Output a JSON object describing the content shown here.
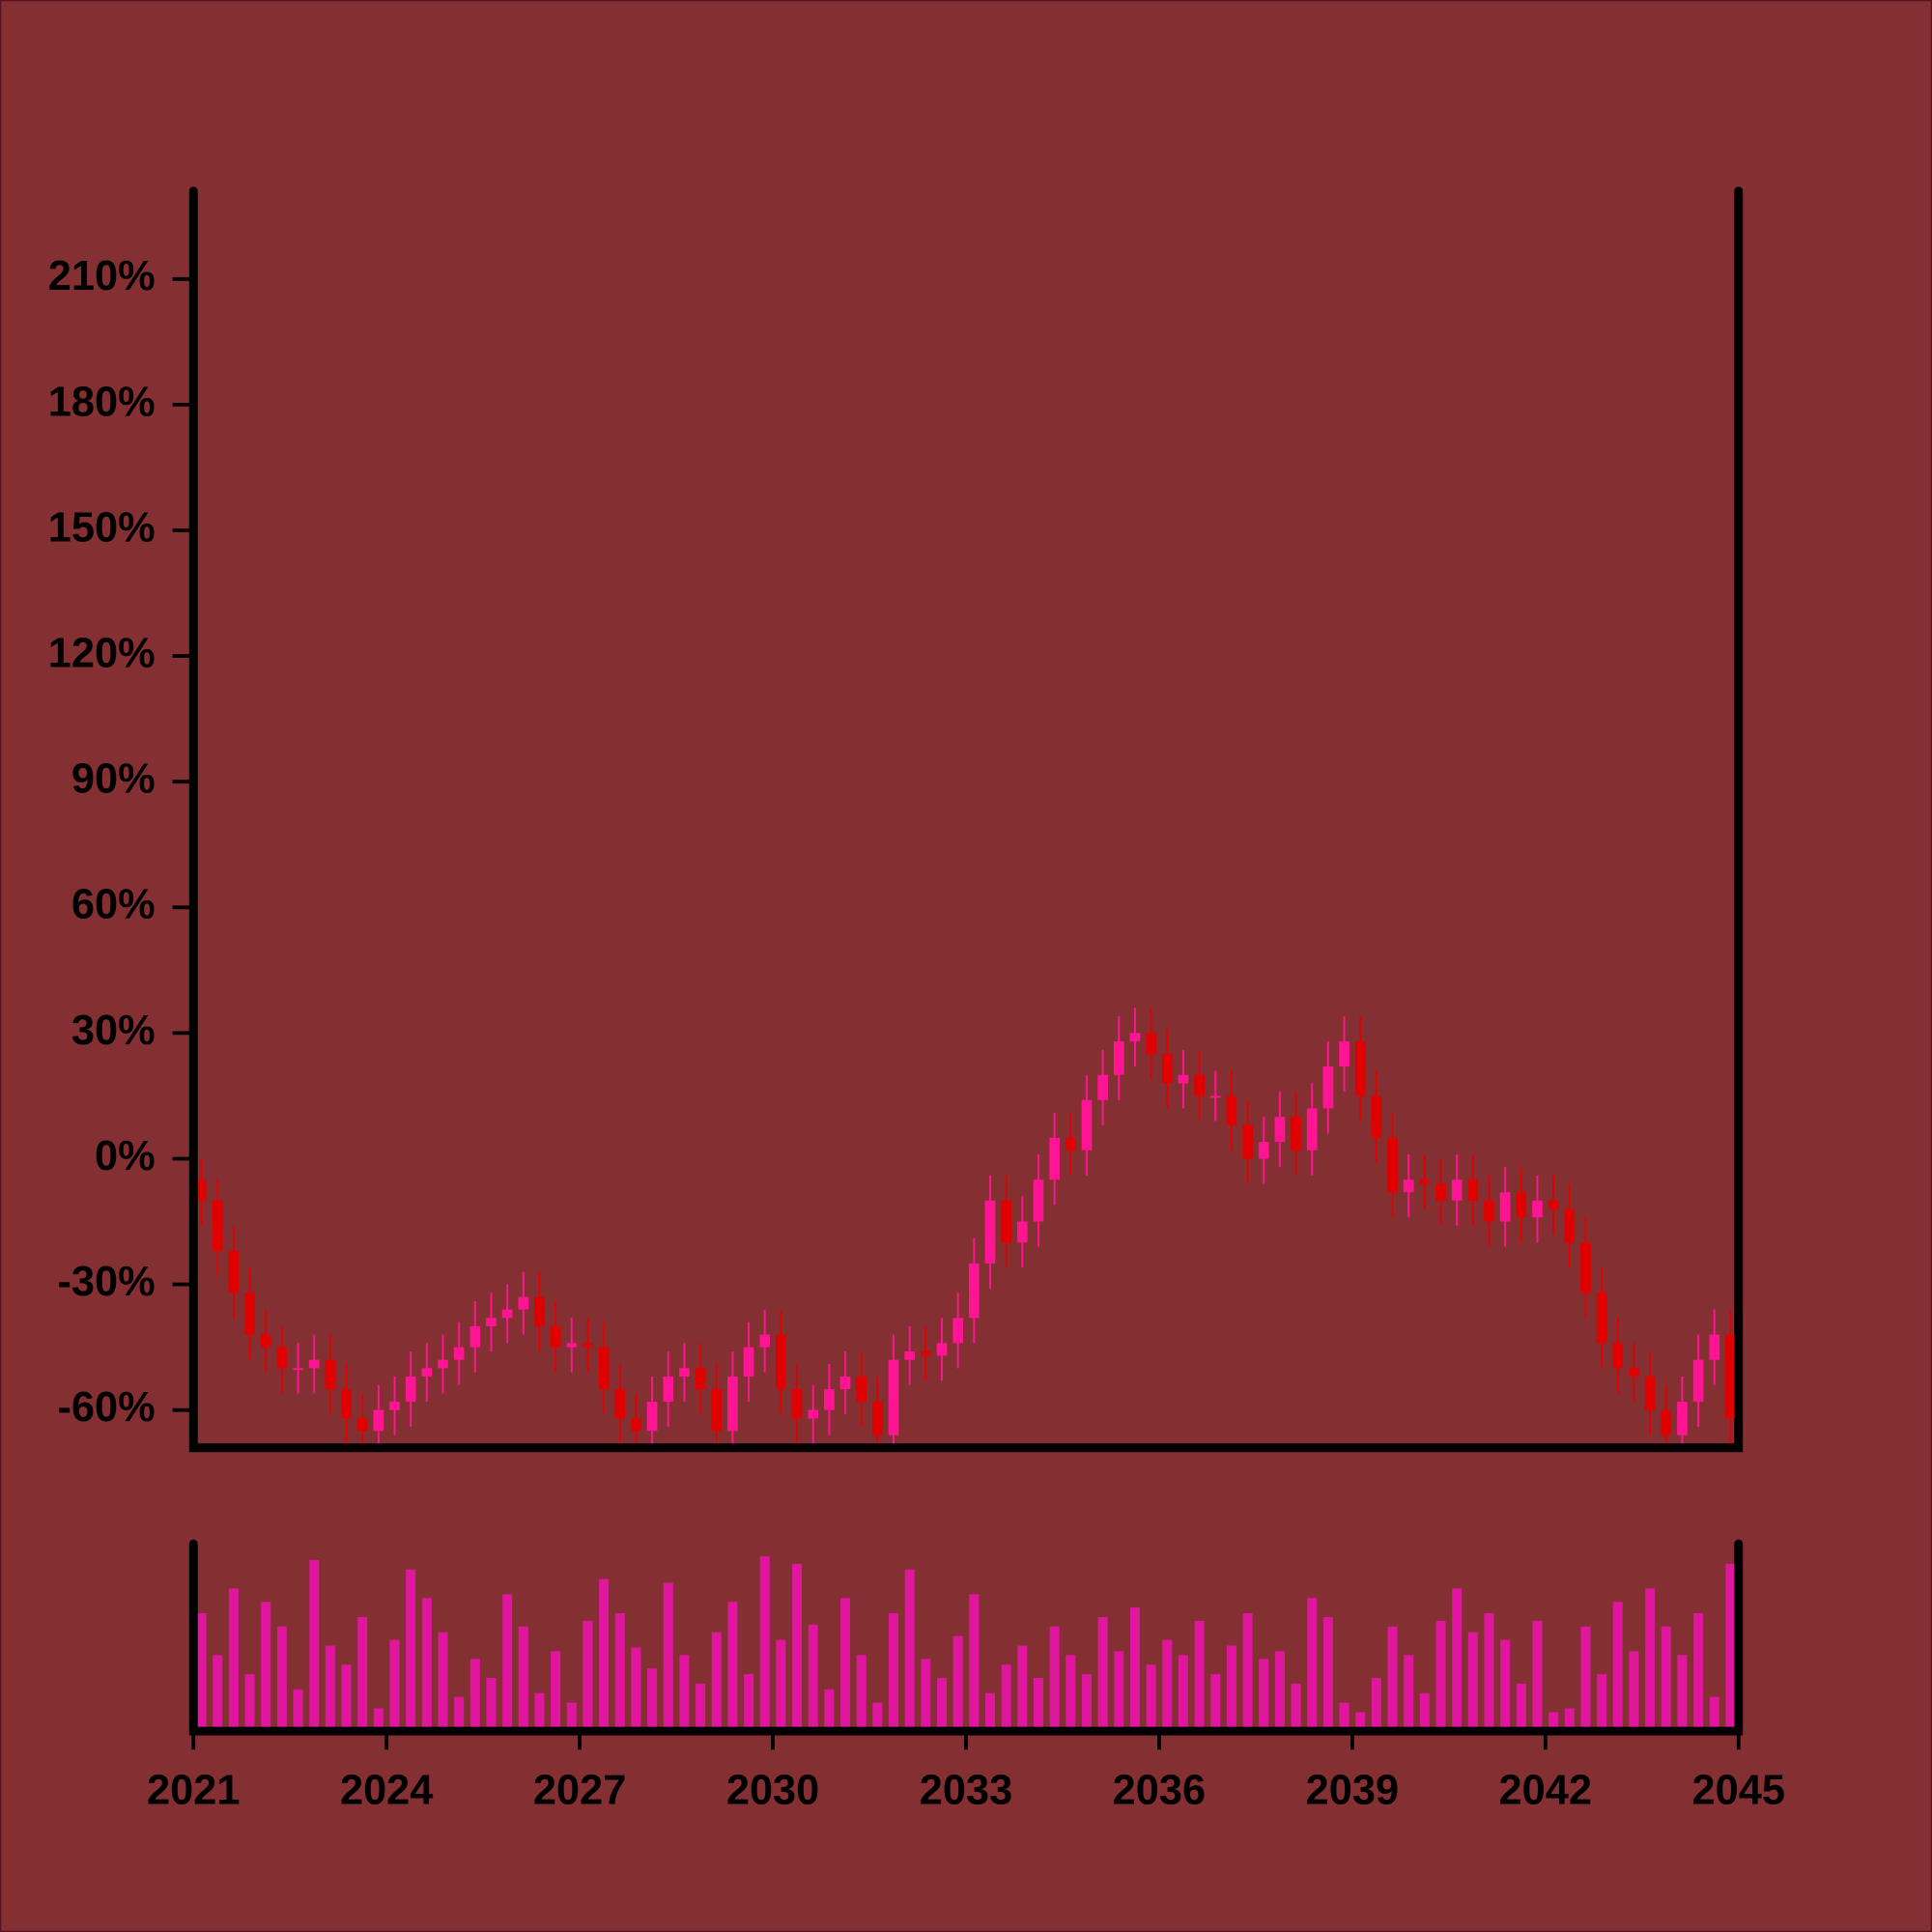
{
  "chart_data": {
    "type": "candlestick",
    "xlim": [
      2021,
      2045
    ],
    "xticks": [
      2021,
      2024,
      2027,
      2030,
      2033,
      2036,
      2039,
      2042,
      2045
    ],
    "ylim": [
      -69,
      231
    ],
    "yticks": [
      {
        "value": -60,
        "label": "-60%"
      },
      {
        "value": -30,
        "label": "-30%"
      },
      {
        "value": 0,
        "label": "0%"
      },
      {
        "value": 30,
        "label": "30%"
      },
      {
        "value": 60,
        "label": "60%"
      },
      {
        "value": 90,
        "label": "90%"
      },
      {
        "value": 120,
        "label": "120%"
      },
      {
        "value": 150,
        "label": "150%"
      },
      {
        "value": 180,
        "label": "180%"
      },
      {
        "value": 210,
        "label": "210%"
      }
    ],
    "up_color": "#ff1493",
    "down_color": "#e00000",
    "volume_color": "#e0169f",
    "x": [
      2021,
      2021.25,
      2021.5,
      2021.75,
      2022,
      2022.25,
      2022.5,
      2022.75,
      2023,
      2023.25,
      2023.5,
      2023.75,
      2024,
      2024.25,
      2024.5,
      2024.75,
      2025,
      2025.25,
      2025.5,
      2025.75,
      2026,
      2026.25,
      2026.5,
      2026.75,
      2027,
      2027.25,
      2027.5,
      2027.75,
      2028,
      2028.25,
      2028.5,
      2028.75,
      2029,
      2029.25,
      2029.5,
      2029.75,
      2030,
      2030.25,
      2030.5,
      2030.75,
      2031,
      2031.25,
      2031.5,
      2031.75,
      2032,
      2032.25,
      2032.5,
      2032.75,
      2033,
      2033.25,
      2033.5,
      2033.75,
      2034,
      2034.25,
      2034.5,
      2034.75,
      2035,
      2035.25,
      2035.5,
      2035.75,
      2036,
      2036.25,
      2036.5,
      2036.75,
      2037,
      2037.25,
      2037.5,
      2037.75,
      2038,
      2038.25,
      2038.5,
      2038.75,
      2039,
      2039.25,
      2039.5,
      2039.75,
      2040,
      2040.25,
      2040.5,
      2040.75,
      2041,
      2041.25,
      2041.5,
      2041.75,
      2042,
      2042.25,
      2042.5,
      2042.75,
      2043,
      2043.25,
      2043.5,
      2043.75,
      2044,
      2044.25,
      2044.5,
      2044.75
    ],
    "open": [
      -5,
      -10,
      -22,
      -32,
      -42,
      -45,
      -50,
      -50,
      -48,
      -55,
      -62,
      -65,
      -60,
      -58,
      -52,
      -50,
      -48,
      -45,
      -40,
      -38,
      -36,
      -33,
      -40,
      -45,
      -44,
      -45,
      -55,
      -62,
      -65,
      -58,
      -52,
      -50,
      -55,
      -65,
      -52,
      -45,
      -42,
      -55,
      -62,
      -60,
      -55,
      -52,
      -58,
      -66,
      -48,
      -46,
      -47,
      -44,
      -38,
      -25,
      -10,
      -20,
      -15,
      -5,
      5,
      2,
      14,
      20,
      28,
      30,
      25,
      18,
      20,
      15,
      15,
      8,
      0,
      4,
      10,
      2,
      12,
      22,
      28,
      15,
      5,
      -8,
      -5,
      -6,
      -10,
      -5,
      -10,
      -15,
      -8,
      -14,
      -10,
      -12,
      -20,
      -32,
      -44,
      -50,
      -52,
      -60,
      -66,
      -58,
      -48,
      -42
    ],
    "high": [
      0,
      -5,
      -16,
      -26,
      -36,
      -40,
      -44,
      -42,
      -42,
      -49,
      -56,
      -54,
      -52,
      -46,
      -44,
      -42,
      -39,
      -34,
      -32,
      -30,
      -27,
      -27,
      -34,
      -38,
      -38,
      -39,
      -49,
      -56,
      -52,
      -46,
      -44,
      -44,
      -49,
      -46,
      -39,
      -36,
      -36,
      -49,
      -54,
      -49,
      -46,
      -46,
      -52,
      -42,
      -40,
      -40,
      -38,
      -32,
      -19,
      -4,
      -4,
      -9,
      1,
      11,
      11,
      20,
      26,
      34,
      36,
      36,
      31,
      26,
      26,
      21,
      21,
      14,
      10,
      16,
      16,
      18,
      28,
      34,
      34,
      21,
      11,
      1,
      1,
      0,
      1,
      1,
      -4,
      -2,
      -2,
      -4,
      -4,
      -6,
      -14,
      -26,
      -38,
      -44,
      -46,
      -54,
      -52,
      -42,
      -36,
      -36
    ],
    "low": [
      -16,
      -28,
      -38,
      -48,
      -51,
      -56,
      -56,
      -56,
      -61,
      -68,
      -71,
      -71,
      -66,
      -64,
      -58,
      -56,
      -54,
      -51,
      -46,
      -44,
      -42,
      -46,
      -51,
      -51,
      -51,
      -61,
      -68,
      -71,
      -71,
      -64,
      -58,
      -61,
      -71,
      -71,
      -58,
      -51,
      -61,
      -68,
      -68,
      -66,
      -61,
      -64,
      -72,
      -72,
      -54,
      -53,
      -53,
      -50,
      -44,
      -31,
      -26,
      -26,
      -21,
      -11,
      -4,
      -4,
      8,
      14,
      22,
      19,
      12,
      12,
      9,
      9,
      2,
      -6,
      -6,
      -2,
      -4,
      -4,
      6,
      16,
      9,
      -1,
      -14,
      -14,
      -12,
      -16,
      -16,
      -16,
      -21,
      -21,
      -20,
      -20,
      -18,
      -26,
      -38,
      -50,
      -56,
      -58,
      -66,
      -72,
      -72,
      -64,
      -54,
      -68
    ],
    "close": [
      -10,
      -22,
      -32,
      -42,
      -45,
      -50,
      -50,
      -48,
      -55,
      -62,
      -65,
      -60,
      -58,
      -52,
      -50,
      -48,
      -45,
      -40,
      -38,
      -36,
      -33,
      -40,
      -45,
      -44,
      -45,
      -55,
      -62,
      -65,
      -58,
      -52,
      -50,
      -55,
      -65,
      -52,
      -45,
      -42,
      -55,
      -62,
      -60,
      -55,
      -52,
      -58,
      -66,
      -48,
      -46,
      -47,
      -44,
      -38,
      -25,
      -10,
      -20,
      -15,
      -5,
      5,
      2,
      14,
      20,
      28,
      30,
      25,
      18,
      20,
      15,
      15,
      8,
      0,
      4,
      10,
      2,
      12,
      22,
      28,
      15,
      5,
      -8,
      -5,
      -6,
      -10,
      -5,
      -10,
      -15,
      -8,
      -14,
      -10,
      -12,
      -20,
      -32,
      -44,
      -50,
      -52,
      -60,
      -66,
      -58,
      -48,
      -42,
      -62
    ],
    "volume": [
      62,
      40,
      75,
      30,
      68,
      55,
      22,
      90,
      45,
      35,
      60,
      12,
      48,
      85,
      70,
      52,
      18,
      38,
      28,
      72,
      55,
      20,
      42,
      15,
      58,
      80,
      62,
      44,
      33,
      78,
      40,
      25,
      52,
      68,
      30,
      92,
      48,
      88,
      56,
      22,
      70,
      40,
      15,
      62,
      85,
      38,
      28,
      50,
      72,
      20,
      35,
      45,
      28,
      55,
      40,
      30,
      60,
      42,
      65,
      35,
      48,
      40,
      58,
      30,
      45,
      62,
      38,
      42,
      25,
      70,
      60,
      15,
      10,
      28,
      55,
      40,
      20,
      58,
      75,
      52,
      62,
      48,
      25,
      58,
      10,
      12,
      55,
      30,
      68,
      42,
      75,
      55,
      40,
      62,
      18,
      88
    ]
  }
}
